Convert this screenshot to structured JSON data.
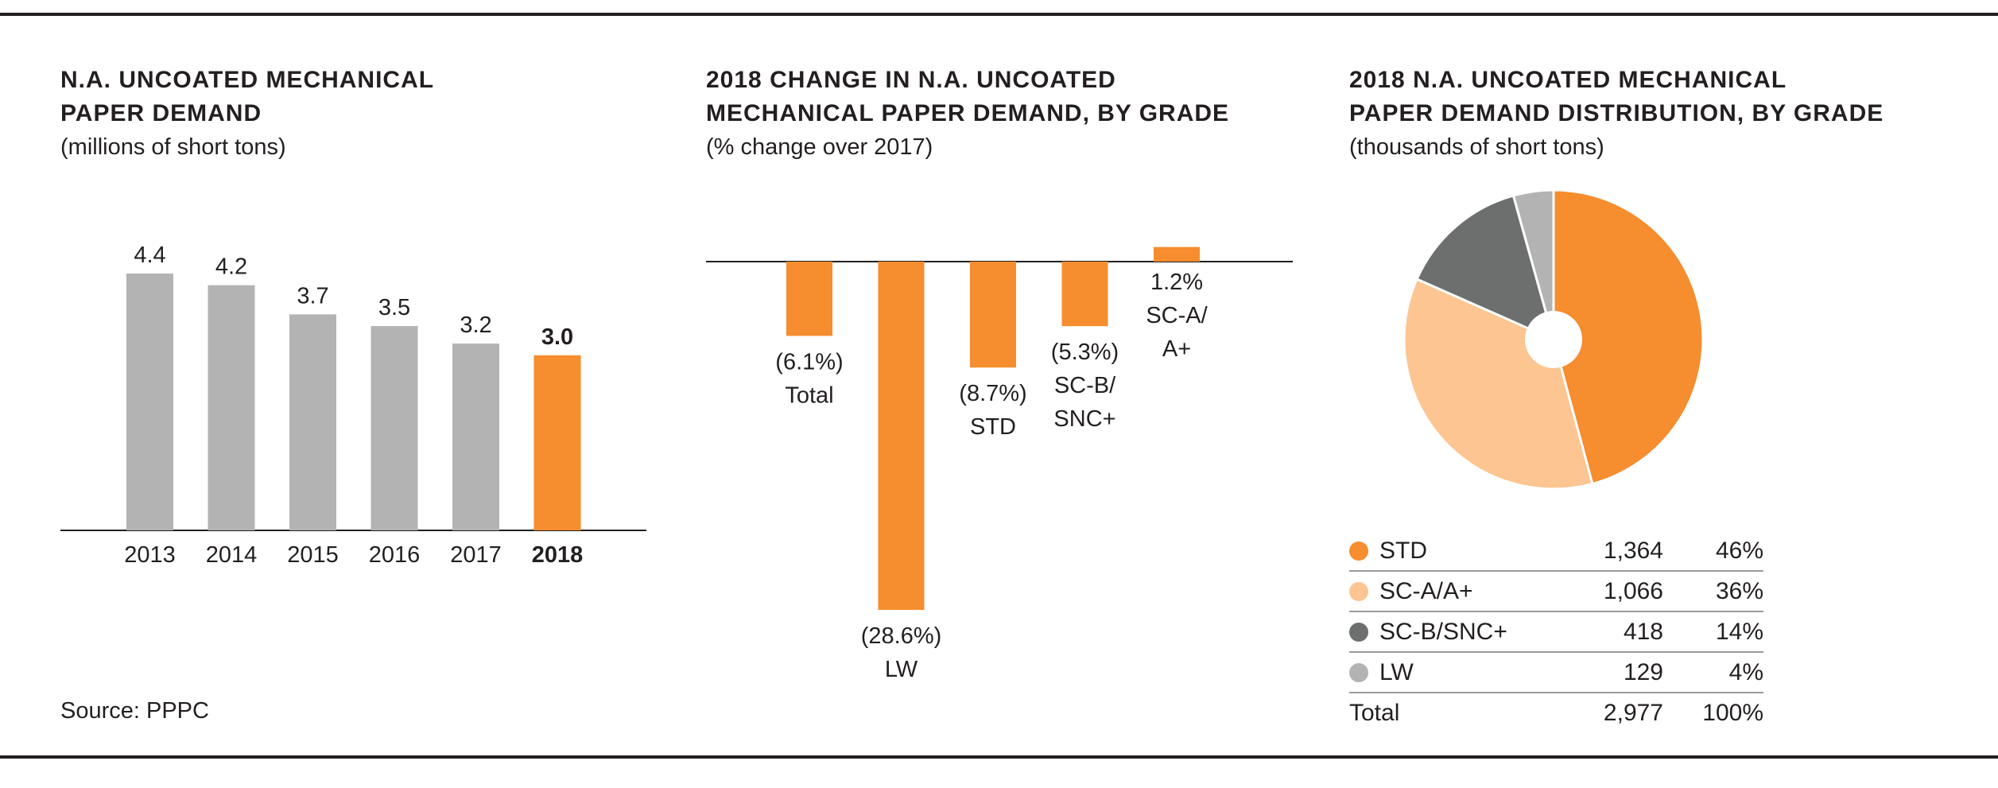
{
  "charts": {
    "demand": {
      "title_lines": [
        "N.A. UNCOATED MECHANICAL",
        "PAPER DEMAND"
      ],
      "subtitle": "(millions of short tons)"
    },
    "change": {
      "title_lines": [
        "2018 CHANGE IN N.A. UNCOATED",
        "MECHANICAL PAPER DEMAND, BY GRADE"
      ],
      "subtitle": "(% change over 2017)"
    },
    "distribution": {
      "title_lines": [
        "2018 N.A. UNCOATED MECHANICAL",
        "PAPER DEMAND DISTRIBUTION, BY GRADE"
      ],
      "subtitle": "(thousands of short tons)"
    }
  },
  "source": "Source: PPPC",
  "colors": {
    "gray_bar": "#b3b3b3",
    "orange": "#f68d2e",
    "light_orange": "#fdc591",
    "dark_gray": "#6d6e6e",
    "light_gray": "#b3b3b3",
    "text": "#231f20"
  },
  "chart_data": [
    {
      "type": "bar",
      "categories": [
        "2013",
        "2014",
        "2015",
        "2016",
        "2017",
        "2018"
      ],
      "values": [
        4.4,
        4.2,
        3.7,
        3.5,
        3.2,
        3.0
      ],
      "labels": [
        "4.4",
        "4.2",
        "3.7",
        "3.5",
        "3.2",
        "3.0"
      ],
      "highlight_category": "2018",
      "title": "N.A. UNCOATED MECHANICAL PAPER DEMAND",
      "subtitle": "(millions of short tons)",
      "ylim": [
        0,
        4.6
      ]
    },
    {
      "type": "bar",
      "categories": [
        "Total",
        "LW",
        "STD",
        "SC-B/SNC+",
        "SC-A/A+"
      ],
      "values": [
        -6.1,
        -28.6,
        -8.7,
        -5.3,
        1.2
      ],
      "label_lines": [
        [
          "(6.1%)",
          "Total"
        ],
        [
          "(28.6%)",
          "LW"
        ],
        [
          "(8.7%)",
          "STD"
        ],
        [
          "(5.3%)",
          "SC-B/",
          "SNC+"
        ],
        [
          "1.2%",
          "SC-A/",
          "A+"
        ]
      ],
      "title": "2018 CHANGE IN N.A. UNCOATED MECHANICAL PAPER DEMAND, BY GRADE",
      "subtitle": "(% change over 2017)",
      "ylim": [
        -30,
        2
      ]
    },
    {
      "type": "pie",
      "categories": [
        "STD",
        "SC-A/A+",
        "SC-B/SNC+",
        "LW"
      ],
      "values": [
        1364,
        1066,
        418,
        129
      ],
      "value_labels": [
        "1,364",
        "1,066",
        "418",
        "129"
      ],
      "percent_labels": [
        "46%",
        "36%",
        "14%",
        "4%"
      ],
      "colors": [
        "#f68d2e",
        "#fdc591",
        "#6d6e6e",
        "#b3b3b3"
      ],
      "total_label": "Total",
      "total_value": "2,977",
      "total_percent": "100%",
      "title": "2018 N.A. UNCOATED MECHANICAL PAPER DEMAND DISTRIBUTION, BY GRADE",
      "subtitle": "(thousands of short tons)",
      "donut_hole": true,
      "legend": "below"
    }
  ]
}
